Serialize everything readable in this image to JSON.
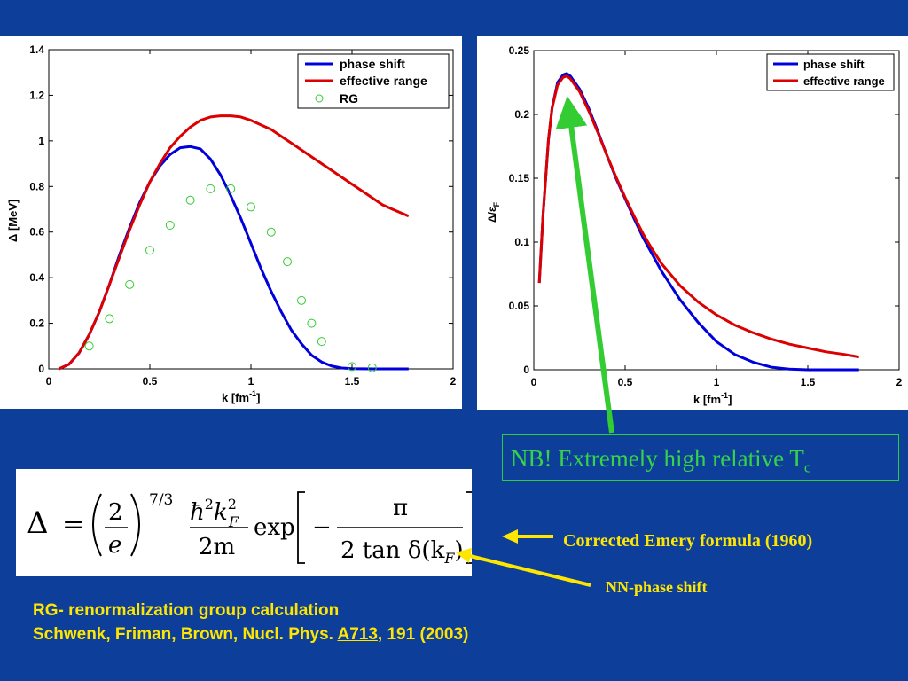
{
  "chart_data": [
    {
      "type": "line",
      "xlabel": "k [fm",
      "xlabel_sup": "-1",
      "xlabel_end": "]",
      "ylabel": "Δ [MeV]",
      "xlim": [
        0,
        2
      ],
      "ylim": [
        0,
        1.4
      ],
      "xticks": [
        "0",
        "0.5",
        "1",
        "1.5",
        "2"
      ],
      "yticks": [
        "0",
        "0.2",
        "0.4",
        "0.6",
        "0.8",
        "1",
        "1.2",
        "1.4"
      ],
      "legend_position": "top-right",
      "series": [
        {
          "name": "phase shift",
          "style": "line",
          "color": "#0000dd",
          "x": [
            0.05,
            0.1,
            0.15,
            0.2,
            0.25,
            0.3,
            0.35,
            0.4,
            0.45,
            0.5,
            0.55,
            0.6,
            0.65,
            0.7,
            0.75,
            0.8,
            0.85,
            0.9,
            0.95,
            1.0,
            1.05,
            1.1,
            1.15,
            1.2,
            1.25,
            1.3,
            1.35,
            1.4,
            1.45,
            1.5,
            1.6,
            1.7,
            1.78
          ],
          "y": [
            0.0,
            0.02,
            0.07,
            0.15,
            0.25,
            0.37,
            0.5,
            0.62,
            0.73,
            0.82,
            0.89,
            0.94,
            0.97,
            0.975,
            0.965,
            0.92,
            0.85,
            0.76,
            0.66,
            0.55,
            0.44,
            0.34,
            0.25,
            0.17,
            0.11,
            0.06,
            0.03,
            0.012,
            0.004,
            0.001,
            0.0,
            0.0,
            0.0
          ]
        },
        {
          "name": "effective range",
          "style": "line",
          "color": "#dd0000",
          "x": [
            0.05,
            0.1,
            0.15,
            0.2,
            0.25,
            0.3,
            0.35,
            0.4,
            0.45,
            0.5,
            0.55,
            0.6,
            0.65,
            0.7,
            0.75,
            0.8,
            0.85,
            0.9,
            0.95,
            1.0,
            1.05,
            1.1,
            1.15,
            1.2,
            1.25,
            1.3,
            1.35,
            1.4,
            1.45,
            1.5,
            1.55,
            1.6,
            1.65,
            1.7,
            1.78
          ],
          "y": [
            0.0,
            0.02,
            0.07,
            0.15,
            0.25,
            0.37,
            0.49,
            0.61,
            0.72,
            0.82,
            0.9,
            0.97,
            1.02,
            1.06,
            1.09,
            1.105,
            1.11,
            1.11,
            1.105,
            1.09,
            1.07,
            1.05,
            1.02,
            0.99,
            0.96,
            0.93,
            0.9,
            0.87,
            0.84,
            0.81,
            0.78,
            0.75,
            0.72,
            0.7,
            0.67
          ]
        },
        {
          "name": "RG",
          "style": "markers",
          "color": "#33cc33",
          "x": [
            0.2,
            0.3,
            0.4,
            0.5,
            0.6,
            0.7,
            0.8,
            0.9,
            1.0,
            1.1,
            1.18,
            1.25,
            1.3,
            1.35,
            1.5,
            1.6
          ],
          "y": [
            0.1,
            0.22,
            0.37,
            0.52,
            0.63,
            0.74,
            0.79,
            0.79,
            0.71,
            0.6,
            0.47,
            0.3,
            0.2,
            0.12,
            0.01,
            0.005
          ]
        }
      ]
    },
    {
      "type": "line",
      "xlabel": "k [fm",
      "xlabel_sup": "-1",
      "xlabel_end": "]",
      "ylabel": "Δ/ε",
      "ylabel_sub": "F",
      "xlim": [
        0,
        2
      ],
      "ylim": [
        0,
        0.25
      ],
      "xticks": [
        "0",
        "0.5",
        "1",
        "1.5",
        "2"
      ],
      "yticks": [
        "0",
        "0.05",
        "0.1",
        "0.15",
        "0.2",
        "0.25"
      ],
      "legend_position": "top-right",
      "series": [
        {
          "name": "phase shift",
          "style": "line",
          "color": "#0000dd",
          "x": [
            0.03,
            0.05,
            0.08,
            0.1,
            0.13,
            0.16,
            0.18,
            0.2,
            0.25,
            0.3,
            0.35,
            0.4,
            0.45,
            0.5,
            0.55,
            0.6,
            0.65,
            0.7,
            0.8,
            0.9,
            1.0,
            1.1,
            1.2,
            1.3,
            1.4,
            1.5,
            1.6,
            1.7,
            1.78
          ],
          "y": [
            0.068,
            0.12,
            0.18,
            0.205,
            0.225,
            0.231,
            0.232,
            0.23,
            0.22,
            0.205,
            0.187,
            0.168,
            0.15,
            0.134,
            0.118,
            0.103,
            0.09,
            0.077,
            0.055,
            0.037,
            0.022,
            0.012,
            0.006,
            0.002,
            0.0005,
            0.0,
            0.0,
            0.0,
            0.0
          ]
        },
        {
          "name": "effective range",
          "style": "line",
          "color": "#dd0000",
          "x": [
            0.03,
            0.05,
            0.08,
            0.1,
            0.13,
            0.16,
            0.18,
            0.2,
            0.25,
            0.3,
            0.35,
            0.4,
            0.45,
            0.5,
            0.55,
            0.6,
            0.65,
            0.7,
            0.8,
            0.9,
            1.0,
            1.1,
            1.2,
            1.3,
            1.4,
            1.5,
            1.6,
            1.7,
            1.78
          ],
          "y": [
            0.068,
            0.12,
            0.18,
            0.205,
            0.223,
            0.229,
            0.23,
            0.228,
            0.218,
            0.203,
            0.186,
            0.168,
            0.151,
            0.135,
            0.12,
            0.106,
            0.094,
            0.083,
            0.066,
            0.053,
            0.043,
            0.035,
            0.029,
            0.024,
            0.02,
            0.017,
            0.014,
            0.012,
            0.01
          ]
        }
      ]
    }
  ],
  "formula": {
    "delta": "Δ",
    "equals": "=",
    "two": "2",
    "e": "e",
    "exponent": "7/3",
    "hbar2": "ħ",
    "sq": "2",
    "k": "k",
    "kF_sup": "2",
    "kF_sub": "F",
    "denom": "2m",
    "exp": "exp",
    "minus": "−",
    "pi": "π",
    "tan_denom": "2 tan δ(k",
    "tan_sub": "F",
    "tan_close": ")"
  },
  "annotations": {
    "nb_text": "NB! Extremely high relative T",
    "nb_sub": "c",
    "emery": "Corrected Emery formula (1960)",
    "nn_phase": "NN-phase shift"
  },
  "reference": {
    "line1": "RG- renormalization group calculation",
    "line2_prefix": "Schwenk, Friman, Brown, Nucl. Phys. ",
    "journal_ref": "A713",
    "line2_suffix": ", 191 (2003)"
  },
  "colors": {
    "background": "#0d3f9a",
    "nb_green": "#35d24a",
    "arrow_green": "#33cc33",
    "note_yellow": "#ffe600"
  }
}
